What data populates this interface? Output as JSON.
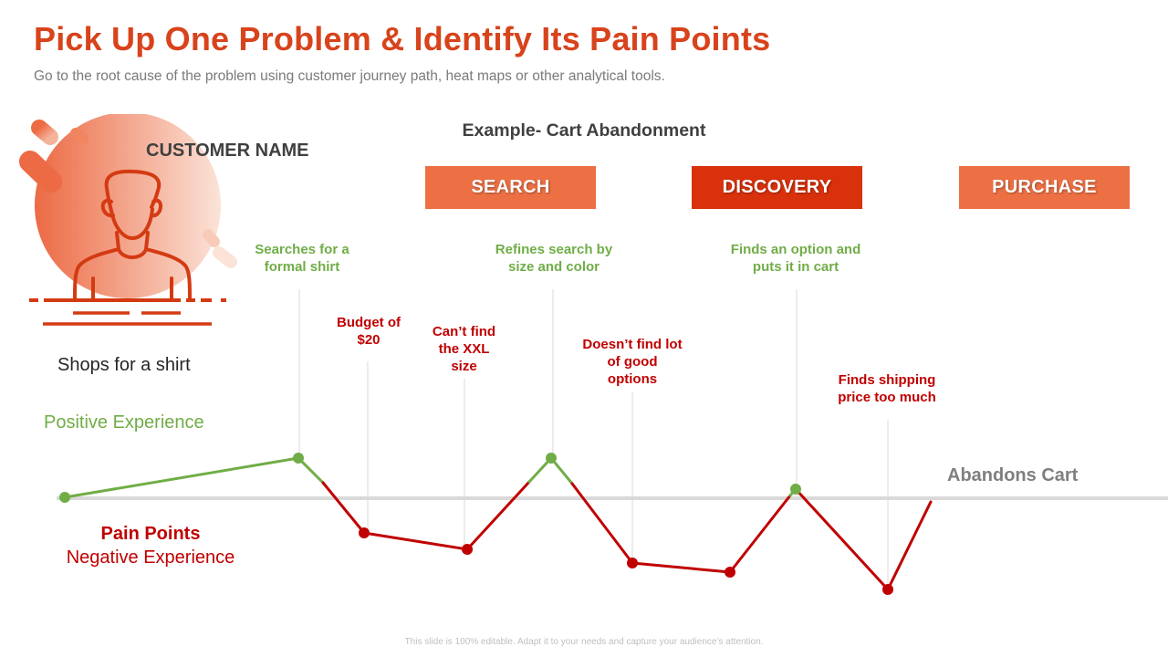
{
  "slide": {
    "title": "Pick Up One Problem & Identify Its Pain Points",
    "subtitle": "Go to the root cause of the problem using customer journey path, heat maps or other analytical tools.",
    "example_title": "Example- Cart Abandonment",
    "customer_name": "CUSTOMER NAME",
    "start_label": "Shops for a shirt",
    "positive_label": "Positive Experience",
    "pain_title": "Pain Points",
    "pain_subtitle": "Negative Experience",
    "end_label": "Abandons Cart",
    "footer": "This slide is 100% editable. Adapt it to your needs and capture your audience’s attention."
  },
  "stages": [
    {
      "label": "SEARCH",
      "color": "#ec7044"
    },
    {
      "label": "DISCOVERY",
      "color": "#d8310c"
    },
    {
      "label": "PURCHASE",
      "color": "#ec7044"
    }
  ],
  "events": [
    {
      "text": "Searches for a formal shirt",
      "type": "positive"
    },
    {
      "text": "Budget of $20",
      "type": "negative"
    },
    {
      "text": "Can’t find the XXL size",
      "type": "negative"
    },
    {
      "text": "Refines search by size and color",
      "type": "positive"
    },
    {
      "text": "Doesn’t find lot of good options",
      "type": "negative"
    },
    {
      "text": "Finds an option and puts it in cart",
      "type": "positive"
    },
    {
      "text": "Finds shipping price too much",
      "type": "negative"
    }
  ],
  "colors": {
    "accent": "#d8431c",
    "positive": "#70ad47",
    "negative": "#c00000",
    "baseline": "#d9d9d9"
  },
  "icons": {
    "customer": "customer-avatar-icon"
  }
}
